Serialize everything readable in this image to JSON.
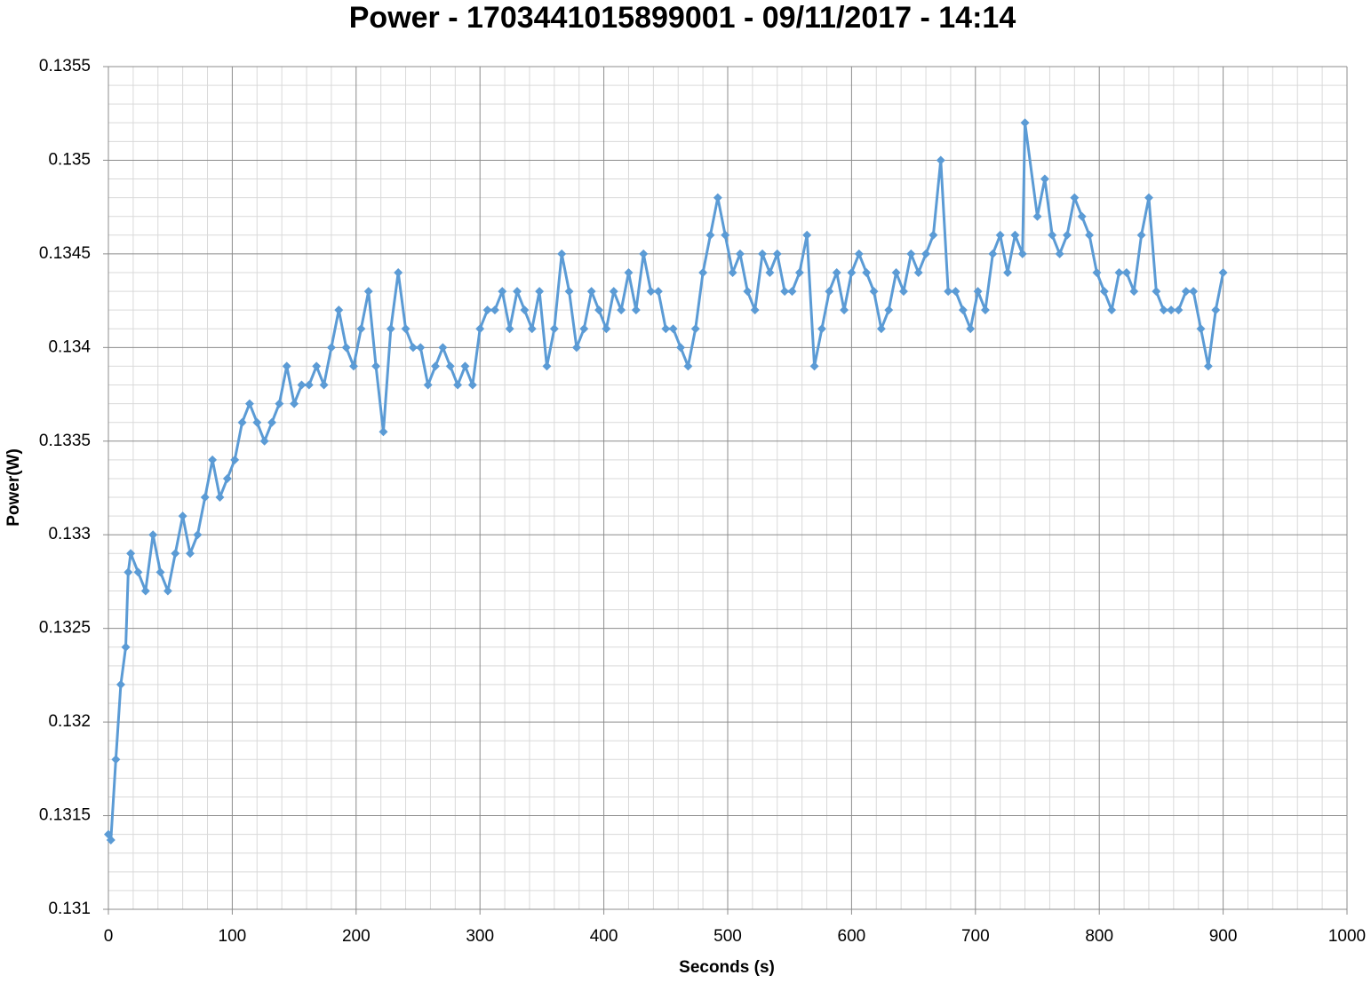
{
  "chart_data": {
    "type": "line",
    "title": "Power - 1703441015899001 - 09/11/2017 - 14:14",
    "x_label": "Seconds (s)",
    "y_label": "Power(W)",
    "color": "#5b9bd5",
    "marker": "diamond",
    "grid": true,
    "xlim": [
      0,
      1000
    ],
    "xticks": [
      0,
      100,
      200,
      300,
      400,
      500,
      600,
      700,
      800,
      900,
      1000
    ],
    "ylim": [
      0.131,
      0.1355
    ],
    "yticks": [
      0.131,
      0.1315,
      0.132,
      0.1325,
      0.133,
      0.1335,
      0.134,
      0.1345,
      0.135,
      0.1355
    ],
    "x": [
      0,
      2,
      6,
      10,
      14,
      16,
      18,
      24,
      30,
      36,
      42,
      48,
      54,
      60,
      66,
      72,
      78,
      84,
      90,
      96,
      102,
      108,
      114,
      120,
      126,
      132,
      138,
      144,
      150,
      156,
      162,
      168,
      174,
      180,
      186,
      192,
      198,
      204,
      210,
      216,
      222,
      228,
      234,
      240,
      246,
      252,
      258,
      264,
      270,
      276,
      282,
      288,
      294,
      300,
      306,
      312,
      318,
      324,
      330,
      336,
      342,
      348,
      354,
      360,
      366,
      372,
      378,
      384,
      390,
      396,
      402,
      408,
      414,
      420,
      426,
      432,
      438,
      444,
      450,
      456,
      462,
      468,
      474,
      480,
      486,
      492,
      498,
      504,
      510,
      516,
      522,
      528,
      534,
      540,
      546,
      552,
      558,
      564,
      570,
      576,
      582,
      588,
      594,
      600,
      606,
      612,
      618,
      624,
      630,
      636,
      642,
      648,
      654,
      660,
      666,
      672,
      678,
      684,
      690,
      696,
      702,
      708,
      714,
      720,
      726,
      732,
      738,
      740,
      750,
      756,
      762,
      768,
      774,
      780,
      786,
      792,
      798,
      804,
      810,
      816,
      822,
      828,
      834,
      840,
      846,
      852,
      858,
      864,
      870,
      876,
      882,
      888,
      894,
      900
    ],
    "values": [
      0.1314,
      0.13137,
      0.1318,
      0.1322,
      0.1324,
      0.1328,
      0.1329,
      0.1328,
      0.1327,
      0.133,
      0.1328,
      0.1327,
      0.1329,
      0.1331,
      0.1329,
      0.133,
      0.1332,
      0.1334,
      0.1332,
      0.1333,
      0.1334,
      0.1336,
      0.1337,
      0.1336,
      0.1335,
      0.1336,
      0.1337,
      0.1339,
      0.1337,
      0.1338,
      0.1338,
      0.1339,
      0.1338,
      0.134,
      0.1342,
      0.134,
      0.1339,
      0.1341,
      0.1343,
      0.1339,
      0.13355,
      0.1341,
      0.1344,
      0.1341,
      0.134,
      0.134,
      0.1338,
      0.1339,
      0.134,
      0.1339,
      0.1338,
      0.1339,
      0.1338,
      0.1341,
      0.1342,
      0.1342,
      0.1343,
      0.1341,
      0.1343,
      0.1342,
      0.1341,
      0.1343,
      0.1339,
      0.1341,
      0.1345,
      0.1343,
      0.134,
      0.1341,
      0.1343,
      0.1342,
      0.1341,
      0.1343,
      0.1342,
      0.1344,
      0.1342,
      0.1345,
      0.1343,
      0.1343,
      0.1341,
      0.1341,
      0.134,
      0.1339,
      0.1341,
      0.1344,
      0.1346,
      0.1348,
      0.1346,
      0.1344,
      0.1345,
      0.1343,
      0.1342,
      0.1345,
      0.1344,
      0.1345,
      0.1343,
      0.1343,
      0.1344,
      0.1346,
      0.1339,
      0.1341,
      0.1343,
      0.1344,
      0.1342,
      0.1344,
      0.1345,
      0.1344,
      0.1343,
      0.1341,
      0.1342,
      0.1344,
      0.1343,
      0.1345,
      0.1344,
      0.1345,
      0.1346,
      0.135,
      0.1343,
      0.1343,
      0.1342,
      0.1341,
      0.1343,
      0.1342,
      0.1345,
      0.1346,
      0.1344,
      0.1346,
      0.1345,
      0.1352,
      0.1347,
      0.1349,
      0.1346,
      0.1345,
      0.1346,
      0.1348,
      0.1347,
      0.1346,
      0.1344,
      0.1343,
      0.1342,
      0.1344,
      0.1344,
      0.1343,
      0.1346,
      0.1348,
      0.1343,
      0.1342,
      0.1342,
      0.1342,
      0.1343,
      0.1343,
      0.1341,
      0.1339,
      0.1342,
      0.1344
    ]
  }
}
